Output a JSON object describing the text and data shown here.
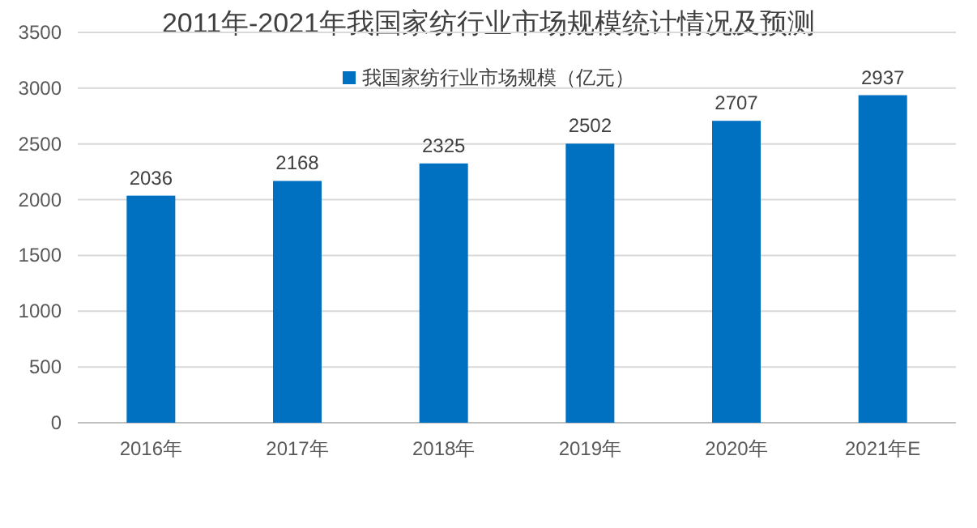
{
  "chart_data": {
    "type": "bar",
    "title": "2011年-2021年我国家纺行业市场规模统计情况及预测",
    "categories": [
      "2016年",
      "2017年",
      "2018年",
      "2019年",
      "2020年",
      "2021年E"
    ],
    "series": [
      {
        "name": "我国家纺行业市场规模（亿元）",
        "color": "#0070c0",
        "values": [
          2036,
          2168,
          2325,
          2502,
          2707,
          2937
        ]
      }
    ],
    "ylim": [
      0,
      3500
    ],
    "yticks": [
      0,
      500,
      1000,
      1500,
      2000,
      2500,
      3000,
      3500
    ],
    "grid": "y",
    "legend": "top",
    "data_labels": true
  }
}
